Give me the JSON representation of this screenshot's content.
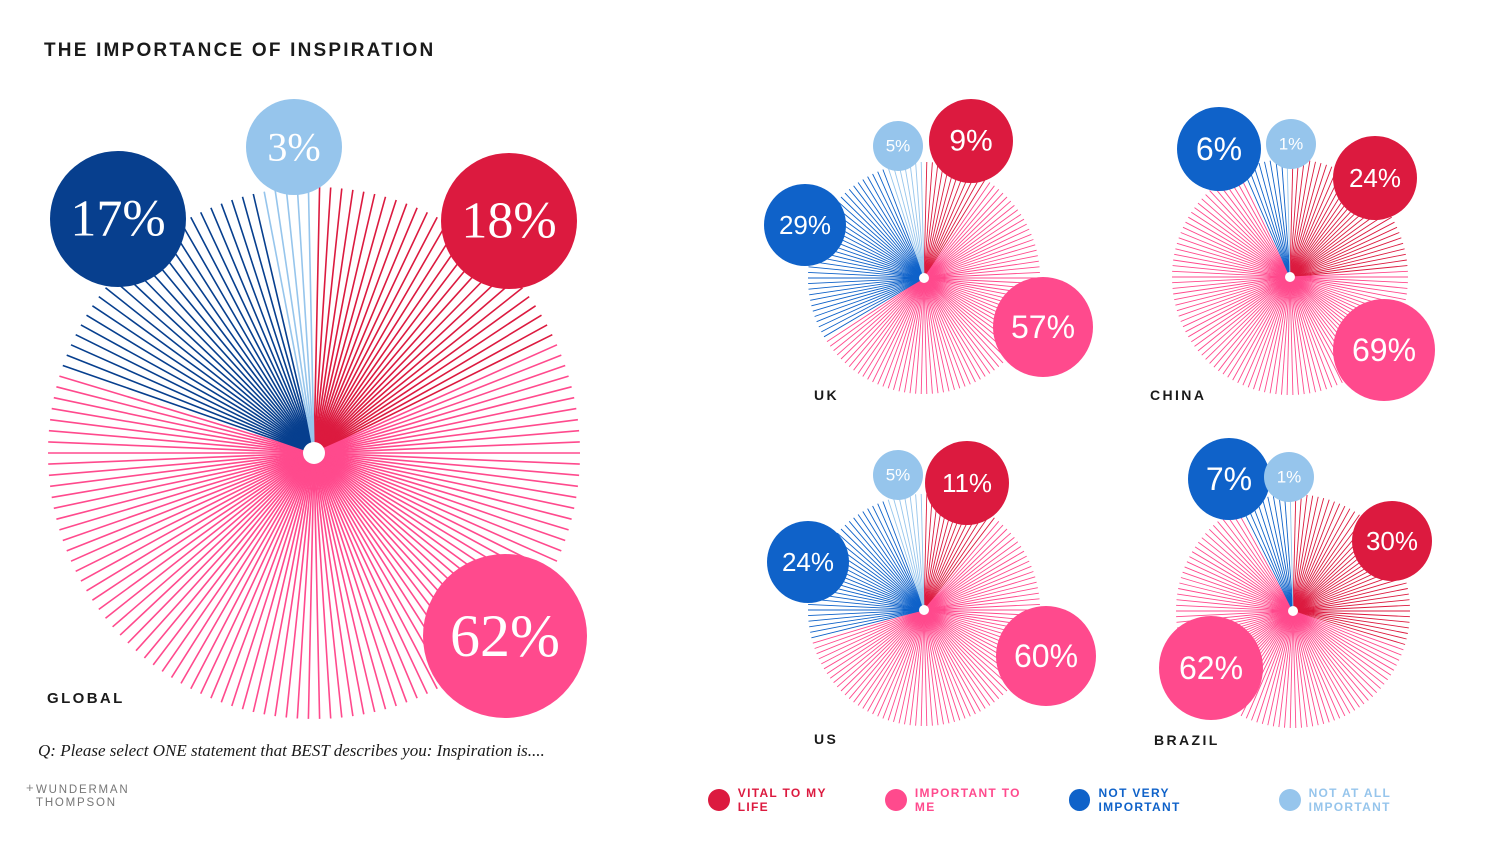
{
  "header": {
    "title": "THE IMPORTANCE OF INSPIRATION"
  },
  "question": "Q: Please select ONE statement that BEST describes you: Inspiration is....",
  "logo": {
    "line1": "WUNDERMAN",
    "line2": "THOMPSON"
  },
  "legend": [
    {
      "label": "VITAL TO MY LIFE",
      "color": "#dc1a3f"
    },
    {
      "label": "IMPORTANT TO ME",
      "color": "#ff4a8d"
    },
    {
      "label": "NOT VERY IMPORTANT",
      "color": "#0f62c9"
    },
    {
      "label": "NOT AT ALL IMPORTANT",
      "color": "#96c5ec"
    }
  ],
  "chart_data": [
    {
      "type": "pie",
      "title": "GLOBAL",
      "categories": [
        "VITAL TO MY LIFE",
        "IMPORTANT TO ME",
        "NOT VERY IMPORTANT",
        "NOT AT ALL IMPORTANT"
      ],
      "values": [
        18,
        62,
        17,
        3
      ],
      "labels": [
        "18%",
        "62%",
        "17%",
        "3%"
      ]
    },
    {
      "type": "pie",
      "title": "UK",
      "categories": [
        "VITAL TO MY LIFE",
        "IMPORTANT TO ME",
        "NOT VERY IMPORTANT",
        "NOT AT ALL IMPORTANT"
      ],
      "values": [
        9,
        57,
        29,
        5
      ],
      "labels": [
        "9%",
        "57%",
        "29%",
        "5%"
      ]
    },
    {
      "type": "pie",
      "title": "CHINA",
      "categories": [
        "VITAL TO MY LIFE",
        "IMPORTANT TO ME",
        "NOT VERY IMPORTANT",
        "NOT AT ALL IMPORTANT"
      ],
      "values": [
        24,
        69,
        6,
        1
      ],
      "labels": [
        "24%",
        "69%",
        "6%",
        "1%"
      ]
    },
    {
      "type": "pie",
      "title": "US",
      "categories": [
        "VITAL TO MY LIFE",
        "IMPORTANT TO ME",
        "NOT VERY IMPORTANT",
        "NOT AT ALL IMPORTANT"
      ],
      "values": [
        11,
        60,
        24,
        5
      ],
      "labels": [
        "11%",
        "60%",
        "24%",
        "5%"
      ]
    },
    {
      "type": "pie",
      "title": "BRAZIL",
      "categories": [
        "VITAL TO MY LIFE",
        "IMPORTANT TO ME",
        "NOT VERY IMPORTANT",
        "NOT AT ALL IMPORTANT"
      ],
      "values": [
        30,
        62,
        7,
        1
      ],
      "labels": [
        "30%",
        "62%",
        "7%",
        "1%"
      ]
    }
  ]
}
